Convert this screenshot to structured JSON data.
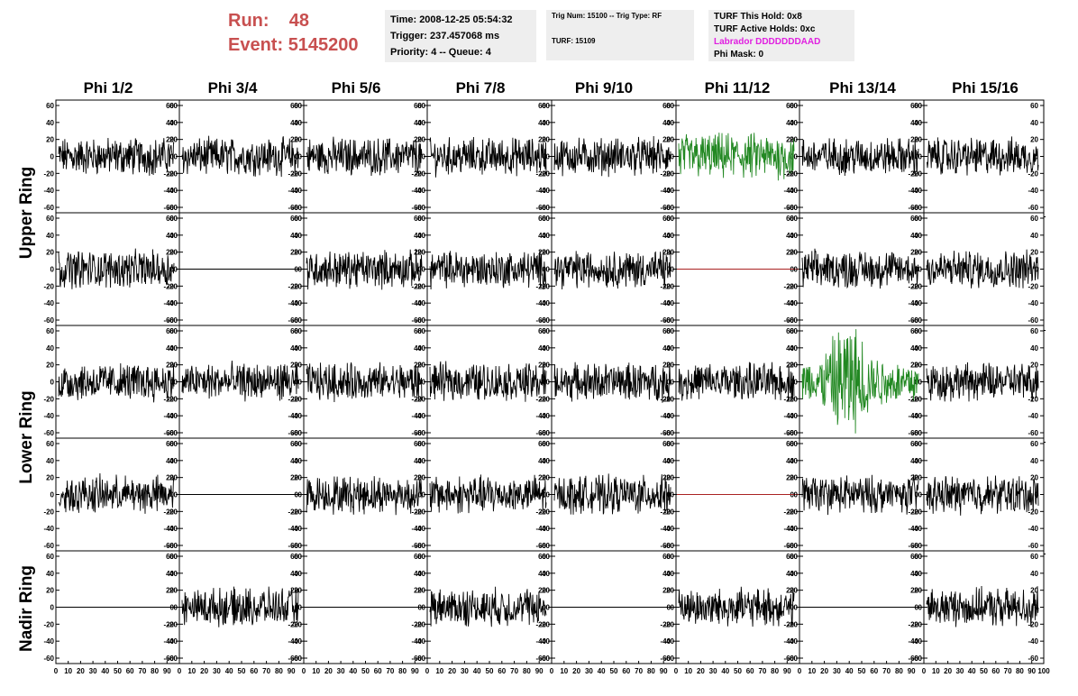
{
  "header": {
    "run_label": "Run:",
    "run_value": "48",
    "event_label": "Event:",
    "event_value": "5145200",
    "time": "Time: 2008-12-25 05:54:32",
    "trigger": "Trigger: 237.457068 ms",
    "priority": "Priority: 4 -- Queue: 4",
    "trig_num": "Trig Num: 15100 -- Trig Type: RF",
    "turf": "TURF: 15109",
    "turf_this_hold": "TURF This Hold: 0x8",
    "turf_active_holds": "TURF Active Holds: 0xc",
    "labrador": "Labrador DDDDDDDAAD",
    "phi_mask": "Phi Mask: 0"
  },
  "columns": [
    "Phi 1/2",
    "Phi 3/4",
    "Phi 5/6",
    "Phi 7/8",
    "Phi 9/10",
    "Phi 11/12",
    "Phi 13/14",
    "Phi 15/16"
  ],
  "ring_labels": [
    "Upper Ring",
    "Lower Ring",
    "Nadir Ring"
  ],
  "y_ticks": [
    "60",
    "40",
    "20",
    "0",
    "-20",
    "-40",
    "-60"
  ],
  "x_ticks": [
    "0",
    "10",
    "20",
    "30",
    "40",
    "50",
    "60",
    "70",
    "80",
    "90",
    "100"
  ],
  "colors": {
    "run_text": "#c85050",
    "labrador": "#e020e0",
    "trace": "#000000",
    "triggered": "#228822",
    "dead": "#aa2222",
    "panel_bg": "#eeeeee"
  },
  "panels": [
    [
      "normal",
      "normal",
      "normal",
      "normal",
      "normal",
      "triggered",
      "normal",
      "normal"
    ],
    [
      "normal",
      "flat-black",
      "normal",
      "normal",
      "normal",
      "flat-red",
      "normal",
      "normal"
    ],
    [
      "normal",
      "normal",
      "normal",
      "normal",
      "normal",
      "normal",
      "triggered",
      "normal"
    ],
    [
      "normal",
      "flat-black",
      "normal",
      "normal",
      "normal",
      "flat-red",
      "normal",
      "normal"
    ],
    [
      "flat-black",
      "normal",
      "flat-black",
      "normal",
      "flat-black",
      "normal",
      "flat-black",
      "normal"
    ]
  ]
}
